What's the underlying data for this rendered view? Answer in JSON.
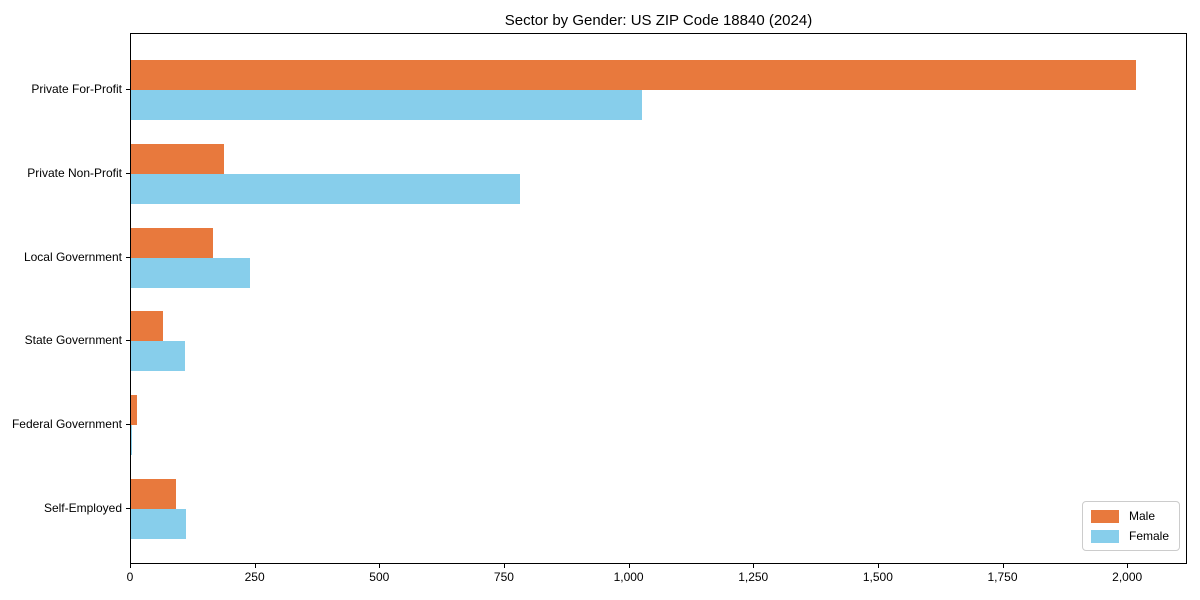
{
  "chart_data": {
    "type": "bar",
    "orientation": "horizontal",
    "title": "Sector by Gender: US ZIP Code 18840 (2024)",
    "categories": [
      "Private For-Profit",
      "Private Non-Profit",
      "Local Government",
      "State Government",
      "Federal Government",
      "Self-Employed"
    ],
    "series": [
      {
        "name": "Male",
        "color": "#E8793D",
        "values": [
          2015,
          187,
          164,
          65,
          13,
          91
        ]
      },
      {
        "name": "Female",
        "color": "#87CEEB",
        "values": [
          1025,
          780,
          238,
          108,
          3,
          110
        ]
      }
    ],
    "xlabel": "",
    "ylabel": "",
    "xlim": [
      0,
      2120
    ],
    "xticks": {
      "values": [
        0,
        250,
        500,
        750,
        1000,
        1250,
        1500,
        1750,
        2000
      ],
      "labels": [
        "0",
        "250",
        "500",
        "750",
        "1,000",
        "1,250",
        "1,500",
        "1,750",
        "2,000"
      ]
    },
    "legend": {
      "position": "lower right",
      "entries": [
        "Male",
        "Female"
      ]
    },
    "grid": false,
    "colors": {
      "male": "#E8793D",
      "female": "#87CEEB",
      "axis": "#000000",
      "legend_border": "#cccccc"
    }
  }
}
